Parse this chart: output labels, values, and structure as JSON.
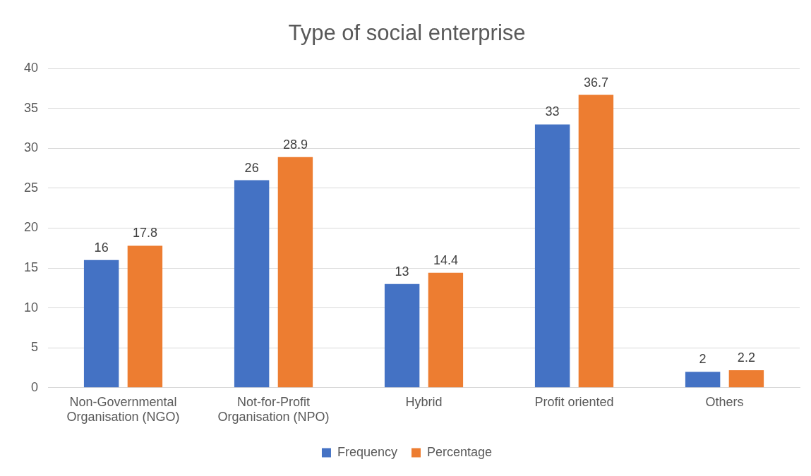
{
  "chart_data": {
    "type": "bar",
    "title": "Type of social enterprise",
    "categories": [
      "Non-Governmental Organisation (NGO)",
      "Not-for-Profit Organisation (NPO)",
      "Hybrid",
      "Profit oriented",
      "Others"
    ],
    "series": [
      {
        "name": "Frequency",
        "color": "#4472c4",
        "values": [
          16,
          26,
          13,
          33,
          2
        ]
      },
      {
        "name": "Percentage",
        "color": "#ed7d31",
        "values": [
          17.8,
          28.9,
          14.4,
          36.7,
          2.2
        ]
      }
    ],
    "ylim": [
      0,
      40
    ],
    "yticks": [
      0,
      5,
      10,
      15,
      20,
      25,
      30,
      35,
      40
    ],
    "grid": "y",
    "legend": "bottom",
    "data_labels": true
  }
}
